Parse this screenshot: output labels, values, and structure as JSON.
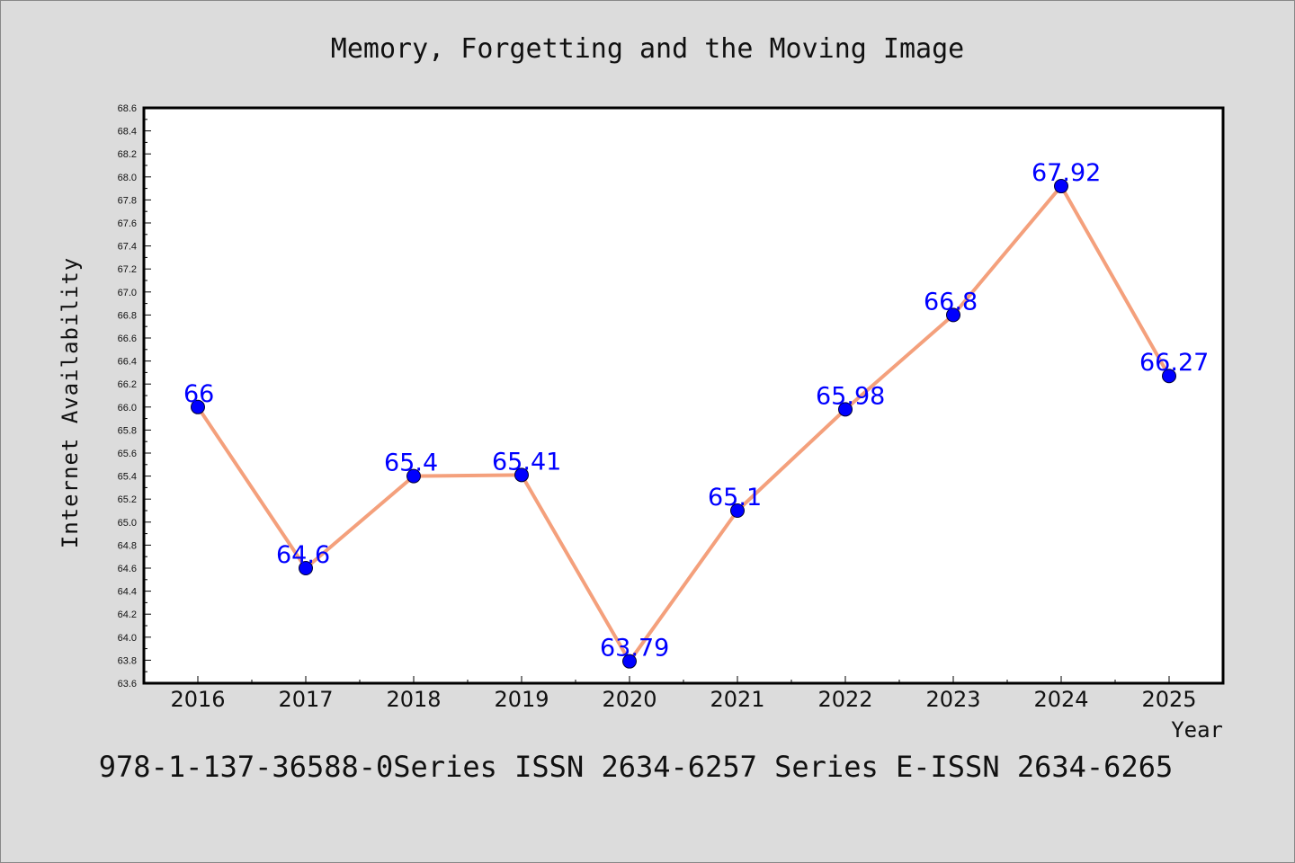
{
  "colors": {
    "background": "#dcdcdc",
    "plot_background": "#ffffff",
    "line": "#f4a07c",
    "marker": "#0000ff",
    "data_label": "#0000ff",
    "axis": "#000000"
  },
  "chart_data": {
    "type": "line",
    "title": "Memory, Forgetting and the Moving Image",
    "xlabel": "Year",
    "ylabel": "Internet Availability",
    "categories": [
      "2016",
      "2017",
      "2018",
      "2019",
      "2020",
      "2021",
      "2022",
      "2023",
      "2024",
      "2025"
    ],
    "values": [
      66,
      64.6,
      65.4,
      65.41,
      63.79,
      65.1,
      65.98,
      66.8,
      67.92,
      66.27
    ],
    "data_labels": [
      "66",
      "64.6",
      "65.4",
      "65.41",
      "63.79",
      "65.1",
      "65.98",
      "66.8",
      "67.92",
      "66.27"
    ],
    "ylim": [
      63.6,
      68.6
    ],
    "ytick_step": 0.2,
    "grid": false,
    "legend": "none",
    "marker": "circle"
  },
  "footer": {
    "text": "978-1-137-36588-0Series ISSN 2634-6257 Series E-ISSN 2634-6265"
  }
}
